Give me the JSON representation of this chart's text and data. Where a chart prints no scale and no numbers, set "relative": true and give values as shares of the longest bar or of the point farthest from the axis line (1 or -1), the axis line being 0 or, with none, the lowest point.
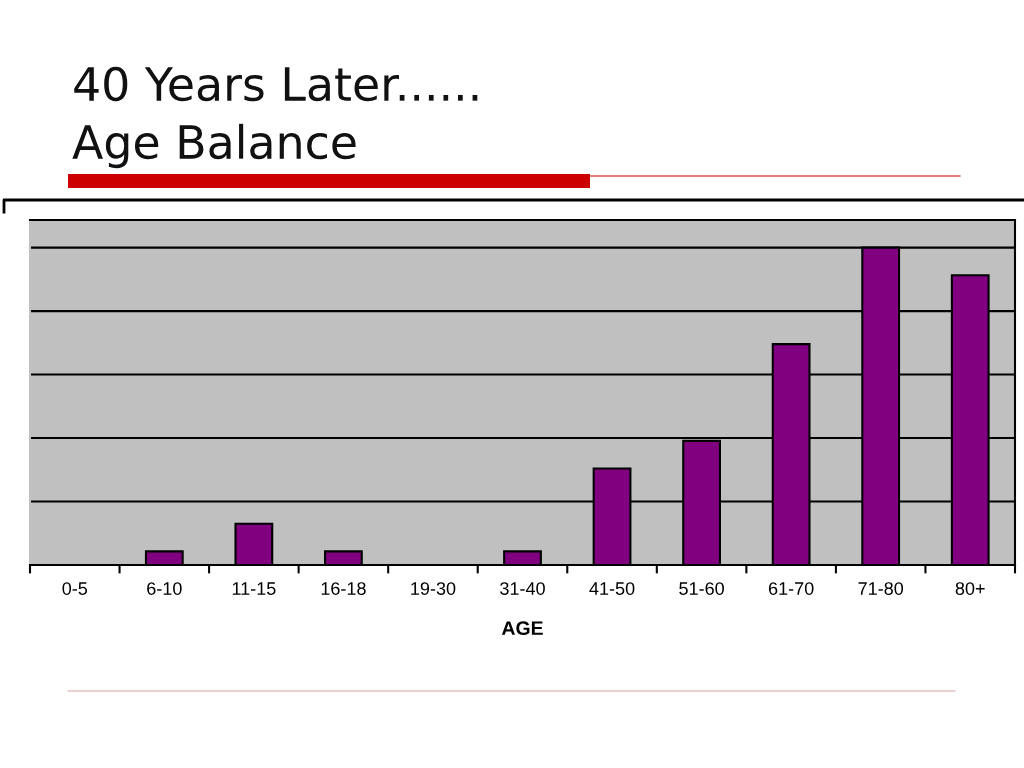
{
  "chart_data": {
    "type": "bar",
    "title": "40 Years Later......",
    "subtitle": "Age Balance",
    "xlabel": "AGE",
    "categories": [
      "0-5",
      "6-10",
      "11-15",
      "16-18",
      "19-30",
      "31-40",
      "41-50",
      "51-60",
      "61-70",
      "71-80",
      "80+"
    ],
    "values": [
      0,
      0.043,
      0.13,
      0.043,
      0,
      0.043,
      0.304,
      0.391,
      0.696,
      1,
      0.913
    ],
    "color": "#800080",
    "relative": true,
    "grid": "y"
  }
}
